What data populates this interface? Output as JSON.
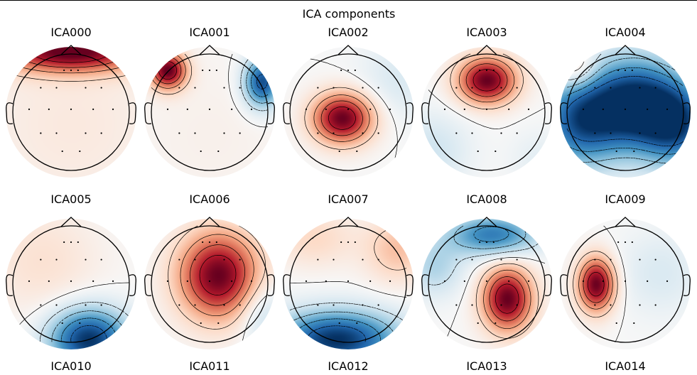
{
  "chart_data": {
    "type": "heatmap",
    "subtype": "EEG ICA scalp topography grid",
    "title": "ICA components",
    "colormap": [
      "#053061",
      "#2166ac",
      "#4393c3",
      "#92c5de",
      "#d1e5f0",
      "#f7f7f7",
      "#fddbc7",
      "#f4a582",
      "#d6604d",
      "#b2182b",
      "#67001f"
    ],
    "value_range": [
      -1,
      1
    ],
    "sensors": [
      [
        -0.12,
        -0.72
      ],
      [
        0.0,
        -0.72
      ],
      [
        0.12,
        -0.72
      ],
      [
        -0.52,
        -0.42
      ],
      [
        -0.25,
        -0.42
      ],
      [
        0.25,
        -0.42
      ],
      [
        0.52,
        -0.42
      ],
      [
        -0.72,
        -0.05
      ],
      [
        -0.38,
        -0.05
      ],
      [
        0.0,
        -0.05
      ],
      [
        0.38,
        -0.05
      ],
      [
        0.72,
        -0.05
      ],
      [
        -0.52,
        0.36
      ],
      [
        -0.25,
        0.36
      ],
      [
        0.25,
        0.36
      ],
      [
        0.52,
        0.36
      ],
      [
        -0.15,
        0.67
      ],
      [
        0.15,
        0.67
      ]
    ],
    "components": [
      {
        "name": "ICA000",
        "sources": [
          {
            "x": 0.0,
            "y": -1.05,
            "amp": 1.0,
            "sx": 0.9,
            "sy": 0.25
          },
          {
            "x": 0.0,
            "y": 0.2,
            "amp": 0.1,
            "sx": 1.2,
            "sy": 1.2
          }
        ]
      },
      {
        "name": "ICA001",
        "sources": [
          {
            "x": -0.72,
            "y": -0.72,
            "amp": 1.0,
            "sx": 0.22,
            "sy": 0.22
          },
          {
            "x": 0.9,
            "y": -0.52,
            "amp": -0.9,
            "sx": 0.22,
            "sy": 0.3
          },
          {
            "x": 0.0,
            "y": 0.4,
            "amp": 0.05,
            "sx": 1.0,
            "sy": 1.0
          }
        ]
      },
      {
        "name": "ICA002",
        "sources": [
          {
            "x": -0.1,
            "y": 0.1,
            "amp": 1.0,
            "sx": 0.36,
            "sy": 0.3
          },
          {
            "x": 0.9,
            "y": -0.6,
            "amp": -0.15,
            "sx": 0.5,
            "sy": 0.5
          }
        ]
      },
      {
        "name": "ICA003",
        "sources": [
          {
            "x": 0.0,
            "y": -0.55,
            "amp": 1.0,
            "sx": 0.35,
            "sy": 0.28
          },
          {
            "x": -0.95,
            "y": 0.65,
            "amp": -0.2,
            "sx": 0.45,
            "sy": 0.45
          },
          {
            "x": 0.9,
            "y": 0.8,
            "amp": -0.1,
            "sx": 0.35,
            "sy": 0.35
          }
        ]
      },
      {
        "name": "ICA004",
        "sources": [
          {
            "x": 0.15,
            "y": -0.15,
            "amp": -1.0,
            "sx": 0.55,
            "sy": 0.55
          },
          {
            "x": -0.8,
            "y": 0.15,
            "amp": -0.8,
            "sx": 0.5,
            "sy": 0.55
          },
          {
            "x": 0.9,
            "y": 0.2,
            "amp": -0.8,
            "sx": 0.45,
            "sy": 0.5
          },
          {
            "x": -0.85,
            "y": -0.75,
            "amp": 0.35,
            "sx": 0.25,
            "sy": 0.25
          }
        ]
      },
      {
        "name": "ICA005",
        "sources": [
          {
            "x": 0.3,
            "y": 0.95,
            "amp": -1.0,
            "sx": 0.48,
            "sy": 0.38
          },
          {
            "x": -0.5,
            "y": -0.4,
            "amp": 0.15,
            "sx": 0.7,
            "sy": 0.7
          }
        ]
      },
      {
        "name": "ICA006",
        "sources": [
          {
            "x": 0.15,
            "y": -0.15,
            "amp": 1.0,
            "sx": 0.48,
            "sy": 0.52
          },
          {
            "x": 0.9,
            "y": 0.5,
            "amp": -0.25,
            "sx": 0.3,
            "sy": 0.4
          }
        ]
      },
      {
        "name": "ICA007",
        "sources": [
          {
            "x": -0.2,
            "y": 0.95,
            "amp": -1.0,
            "sx": 0.75,
            "sy": 0.35
          },
          {
            "x": 0.85,
            "y": -0.6,
            "amp": 0.3,
            "sx": 0.4,
            "sy": 0.4
          },
          {
            "x": -0.6,
            "y": -0.8,
            "amp": 0.2,
            "sx": 0.5,
            "sy": 0.35
          }
        ]
      },
      {
        "name": "ICA008",
        "sources": [
          {
            "x": 0.35,
            "y": 0.25,
            "amp": 1.0,
            "sx": 0.3,
            "sy": 0.38
          },
          {
            "x": 0.1,
            "y": -0.85,
            "amp": -0.7,
            "sx": 0.55,
            "sy": 0.25
          },
          {
            "x": -0.9,
            "y": -0.3,
            "amp": -0.3,
            "sx": 0.35,
            "sy": 0.35
          }
        ]
      },
      {
        "name": "ICA009",
        "sources": [
          {
            "x": -0.5,
            "y": 0.0,
            "amp": 1.0,
            "sx": 0.22,
            "sy": 0.32
          },
          {
            "x": 0.6,
            "y": -0.2,
            "amp": -0.15,
            "sx": 0.5,
            "sy": 0.5
          }
        ]
      }
    ],
    "footer_labels": [
      "ICA010",
      "ICA011",
      "ICA012",
      "ICA013",
      "ICA014"
    ]
  }
}
